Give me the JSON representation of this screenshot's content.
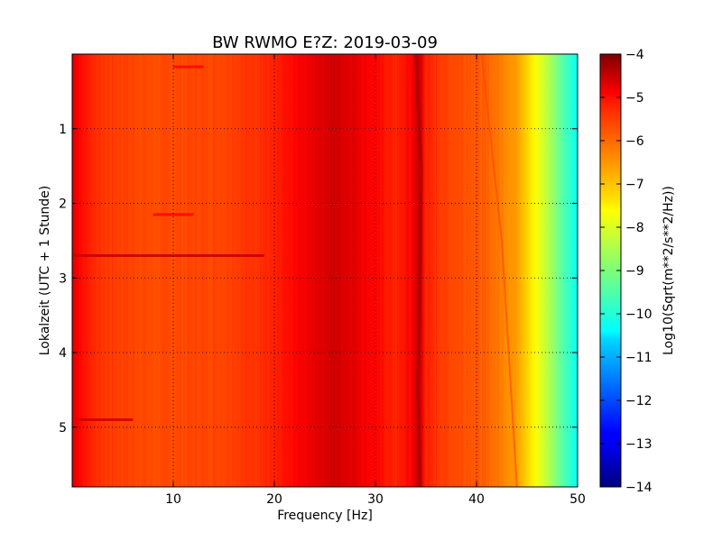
{
  "chart_data": {
    "type": "heatmap",
    "title": "BW RWMO E?Z: 2019-03-09",
    "xlabel": "Frequency [Hz]",
    "ylabel": "Lokalzeit (UTC + 1 Stunde)",
    "xlim": [
      0,
      50
    ],
    "ylim": [
      0,
      5.8
    ],
    "y_inverted": true,
    "x_ticks": [
      10,
      20,
      30,
      40,
      50
    ],
    "x_tick_labels": [
      "10",
      "20",
      "30",
      "40",
      "50"
    ],
    "y_ticks": [
      1,
      2,
      3,
      4,
      5
    ],
    "y_tick_labels": [
      "1",
      "2",
      "3",
      "4",
      "5"
    ],
    "grid": true,
    "colorbar": {
      "label": "Log10(Sqrt(m**2/s**2/Hz))",
      "range": [
        -14,
        -4
      ],
      "ticks": [
        -4,
        -5,
        -6,
        -7,
        -8,
        -9,
        -10,
        -11,
        -12,
        -13,
        -14
      ],
      "tick_labels": [
        "−4",
        "−5",
        "−6",
        "−7",
        "−8",
        "−9",
        "−10",
        "−11",
        "−12",
        "−13",
        "−14"
      ],
      "colormap": "jet"
    },
    "spectrum_profile": {
      "frequency_hz": [
        0,
        1,
        3,
        8,
        15,
        20,
        24,
        26,
        28,
        30,
        32,
        33.5,
        34.3,
        35,
        37,
        40,
        42,
        44,
        45.5,
        47,
        48.5,
        50
      ],
      "log_amplitude": [
        -4.9,
        -5.4,
        -5.8,
        -6.0,
        -5.9,
        -5.6,
        -5.0,
        -4.8,
        -5.0,
        -5.3,
        -5.6,
        -5.3,
        -4.6,
        -5.6,
        -5.9,
        -6.1,
        -6.4,
        -6.8,
        -7.6,
        -8.4,
        -9.4,
        -10.2
      ]
    },
    "spectral_lines": [
      {
        "points": [
          [
            34.0,
            0.0
          ],
          [
            34.5,
            1.5
          ],
          [
            34.4,
            2.9
          ],
          [
            34.2,
            4.5
          ],
          [
            34.4,
            5.8
          ]
        ],
        "level": -4.5
      },
      {
        "points": [
          [
            40.5,
            0.0
          ],
          [
            42.5,
            2.5
          ],
          [
            44.0,
            5.8
          ]
        ],
        "level": -5.9
      }
    ],
    "time_events": [
      {
        "time": 2.7,
        "from_hz": 0,
        "to_hz": 19,
        "level": -4.7
      },
      {
        "time": 4.9,
        "from_hz": 0.5,
        "to_hz": 6,
        "level": -4.8
      },
      {
        "time": 0.17,
        "from_hz": 10,
        "to_hz": 13,
        "level": -5.3
      },
      {
        "time": 2.15,
        "from_hz": 8,
        "to_hz": 12,
        "level": -5.3
      }
    ]
  }
}
